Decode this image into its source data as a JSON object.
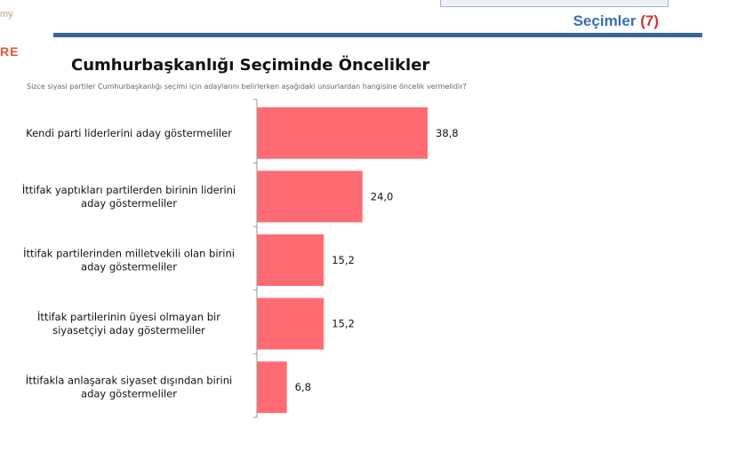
{
  "header": {
    "corner_text": "my",
    "corner_logo": "RE",
    "section_title": "Seçimler",
    "section_number": "(7)"
  },
  "chart_data": {
    "type": "bar",
    "orientation": "horizontal",
    "title": "Cumhurbaşkanlığı Seçiminde Öncelikler",
    "subtitle": "Sizce siyasi partiler Cumhurbaşkanlığı seçimi için adaylarını belirlerken aşağıdaki unsurlardan hangisine öncelik vermelidir?",
    "categories": [
      [
        "Kendi parti liderlerini aday göstermeliler"
      ],
      [
        "İttifak yaptıkları partilerden birinin liderini",
        "aday göstermeliler"
      ],
      [
        "İttifak partilerinden milletvekili olan birini",
        "aday göstermeliler"
      ],
      [
        "İttifak partilerinin üyesi olmayan bir",
        "siyasetçiyi aday göstermeliler"
      ],
      [
        "İttifakla anlaşarak siyaset dışından birini",
        "aday göstermeliler"
      ]
    ],
    "values": [
      38.8,
      24.0,
      15.2,
      15.2,
      6.8
    ],
    "value_labels": [
      "38,8",
      "24,0",
      "15,2",
      "15,2",
      "6,8"
    ],
    "xlim": [
      0,
      40
    ],
    "grid": false,
    "legend": "none",
    "colors": {
      "bar": "#ff6b72",
      "axis": "#999999"
    }
  }
}
